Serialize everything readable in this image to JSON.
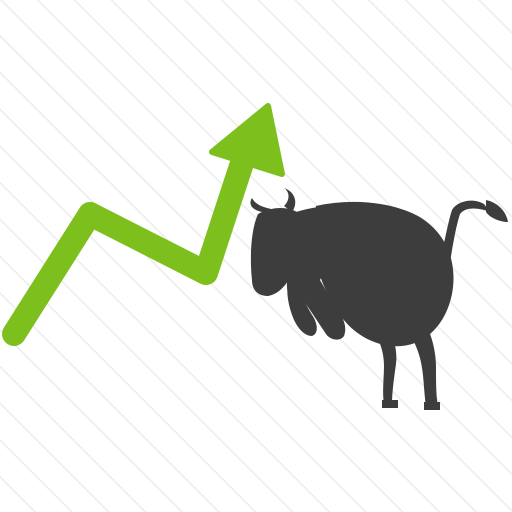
{
  "icon": {
    "name": "bull-market-trend-icon",
    "arrow_icon": "growth-arrow-icon",
    "bull_icon": "bull-icon"
  },
  "colors": {
    "background": "#ffffff",
    "stripes": "#e8e8e8",
    "arrow": "#7dc01d",
    "bull": "#3d3d3d"
  }
}
